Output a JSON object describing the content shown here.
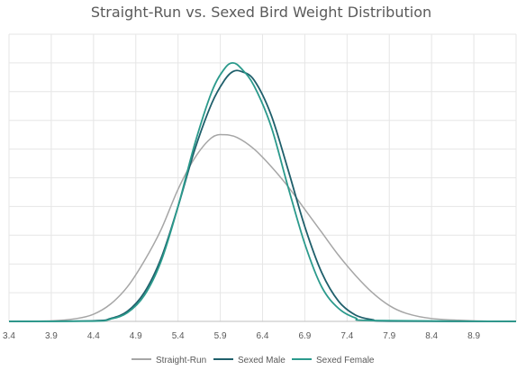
{
  "chart_data": {
    "type": "line",
    "title": "Straight-Run vs. Sexed Bird Weight Distribution",
    "xlabel": "",
    "ylabel": "",
    "xlim": [
      3.4,
      9.4
    ],
    "ylim": [
      0,
      1.0
    ],
    "x_ticks": [
      "3.4",
      "3.9",
      "4.4",
      "4.9",
      "5.4",
      "5.9",
      "6.4",
      "6.9",
      "7.4",
      "7.9",
      "8.4",
      "8.9"
    ],
    "grid": true,
    "legend_position": "bottom",
    "series": [
      {
        "name": "Straight-Run",
        "color": "#a6a6a6",
        "points": [
          [
            3.4,
            0.0
          ],
          [
            3.9,
            0.002
          ],
          [
            4.2,
            0.01
          ],
          [
            4.4,
            0.025
          ],
          [
            4.6,
            0.06
          ],
          [
            4.8,
            0.12
          ],
          [
            5.0,
            0.21
          ],
          [
            5.2,
            0.32
          ],
          [
            5.4,
            0.46
          ],
          [
            5.6,
            0.57
          ],
          [
            5.8,
            0.64
          ],
          [
            5.95,
            0.65
          ],
          [
            6.1,
            0.64
          ],
          [
            6.3,
            0.6
          ],
          [
            6.5,
            0.54
          ],
          [
            6.7,
            0.47
          ],
          [
            6.9,
            0.39
          ],
          [
            7.1,
            0.31
          ],
          [
            7.3,
            0.23
          ],
          [
            7.5,
            0.16
          ],
          [
            7.7,
            0.1
          ],
          [
            7.9,
            0.055
          ],
          [
            8.1,
            0.028
          ],
          [
            8.4,
            0.01
          ],
          [
            8.9,
            0.002
          ],
          [
            9.4,
            0.0
          ]
        ]
      },
      {
        "name": "Sexed Male",
        "color": "#1f5f6b",
        "points": [
          [
            3.4,
            0.0
          ],
          [
            4.4,
            0.002
          ],
          [
            4.6,
            0.01
          ],
          [
            4.8,
            0.035
          ],
          [
            5.0,
            0.1
          ],
          [
            5.2,
            0.22
          ],
          [
            5.4,
            0.4
          ],
          [
            5.6,
            0.6
          ],
          [
            5.8,
            0.76
          ],
          [
            5.95,
            0.84
          ],
          [
            6.05,
            0.87
          ],
          [
            6.15,
            0.87
          ],
          [
            6.3,
            0.84
          ],
          [
            6.5,
            0.72
          ],
          [
            6.7,
            0.53
          ],
          [
            6.9,
            0.33
          ],
          [
            7.1,
            0.17
          ],
          [
            7.3,
            0.07
          ],
          [
            7.5,
            0.022
          ],
          [
            7.7,
            0.006
          ],
          [
            7.9,
            0.001
          ],
          [
            9.4,
            0.0
          ]
        ]
      },
      {
        "name": "Sexed Female",
        "color": "#2b9a8c",
        "points": [
          [
            3.4,
            0.0
          ],
          [
            4.4,
            0.001
          ],
          [
            4.6,
            0.008
          ],
          [
            4.8,
            0.03
          ],
          [
            5.0,
            0.09
          ],
          [
            5.2,
            0.21
          ],
          [
            5.4,
            0.4
          ],
          [
            5.6,
            0.62
          ],
          [
            5.8,
            0.8
          ],
          [
            5.95,
            0.88
          ],
          [
            6.05,
            0.9
          ],
          [
            6.15,
            0.88
          ],
          [
            6.3,
            0.82
          ],
          [
            6.5,
            0.68
          ],
          [
            6.7,
            0.47
          ],
          [
            6.9,
            0.27
          ],
          [
            7.1,
            0.12
          ],
          [
            7.3,
            0.045
          ],
          [
            7.5,
            0.012
          ],
          [
            7.7,
            0.003
          ],
          [
            9.4,
            0.0
          ]
        ]
      }
    ]
  }
}
